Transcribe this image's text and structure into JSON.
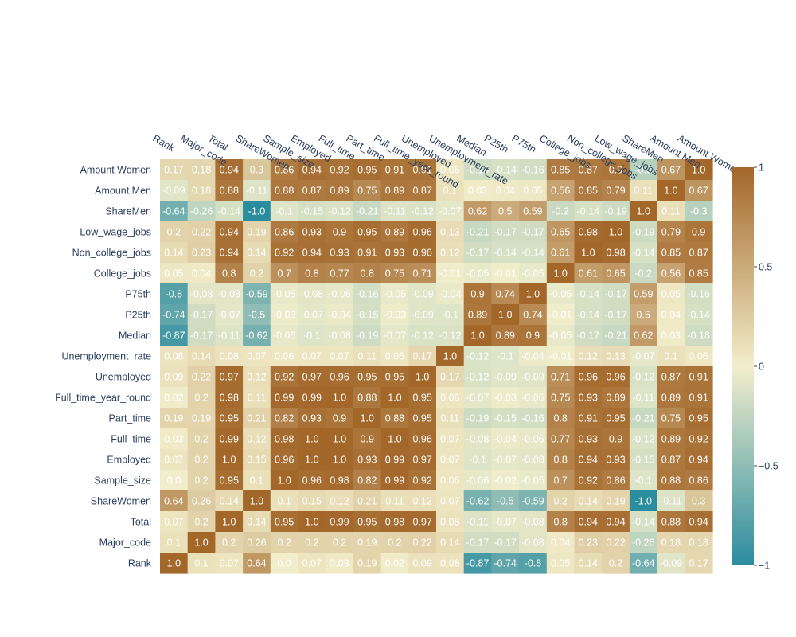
{
  "chart_data": {
    "type": "heatmap",
    "x_labels": [
      "Rank",
      "Major_code",
      "Total",
      "ShareWomen",
      "Sample_size",
      "Employed",
      "Full_time",
      "Part_time",
      "Full_time_year_round",
      "Unemployed",
      "Unemployment_rate",
      "Median",
      "P25th",
      "P75th",
      "College_jobs",
      "Non_college_jobs",
      "Low_wage_jobs",
      "ShareMen",
      "Amount Men",
      "Amount Women"
    ],
    "y_labels": [
      "Amount Women",
      "Amount Men",
      "ShareMen",
      "Low_wage_jobs",
      "Non_college_jobs",
      "College_jobs",
      "P75th",
      "P25th",
      "Median",
      "Unemployment_rate",
      "Unemployed",
      "Full_time_year_round",
      "Part_time",
      "Full_time",
      "Employed",
      "Sample_size",
      "ShareWomen",
      "Total",
      "Major_code",
      "Rank"
    ],
    "values": [
      [
        "0.17",
        "0.18",
        "0.94",
        "0.3",
        "0.86",
        "0.94",
        "0.92",
        "0.95",
        "0.91",
        "0.91",
        "0.06",
        "-0.18",
        "-0.14",
        "-0.16",
        "0.85",
        "0.87",
        "0.9",
        "-0.3",
        "0.67",
        "1.0"
      ],
      [
        "-0.09",
        "0.18",
        "0.88",
        "-0.11",
        "0.88",
        "0.87",
        "0.89",
        "0.75",
        "0.89",
        "0.87",
        "0.1",
        "0.03",
        "0.04",
        "0.05",
        "0.56",
        "0.85",
        "0.79",
        "0.11",
        "1.0",
        "0.67"
      ],
      [
        "-0.64",
        "-0.26",
        "-0.14",
        "-1.0",
        "-0.1",
        "-0.15",
        "-0.12",
        "-0.21",
        "-0.11",
        "-0.12",
        "-0.07",
        "0.62",
        "0.5",
        "0.59",
        "-0.2",
        "-0.14",
        "-0.19",
        "1.0",
        "0.11",
        "-0.3"
      ],
      [
        "0.2",
        "0.22",
        "0.94",
        "0.19",
        "0.86",
        "0.93",
        "0.9",
        "0.95",
        "0.89",
        "0.96",
        "0.13",
        "-0.21",
        "-0.17",
        "-0.17",
        "0.65",
        "0.98",
        "1.0",
        "-0.19",
        "0.79",
        "0.9"
      ],
      [
        "0.14",
        "0.23",
        "0.94",
        "0.14",
        "0.92",
        "0.94",
        "0.93",
        "0.91",
        "0.93",
        "0.96",
        "0.12",
        "-0.17",
        "-0.14",
        "-0.14",
        "0.61",
        "1.0",
        "0.98",
        "-0.14",
        "0.85",
        "0.87"
      ],
      [
        "0.05",
        "0.04",
        "0.8",
        "0.2",
        "0.7",
        "0.8",
        "0.77",
        "0.8",
        "0.75",
        "0.71",
        "-0.01",
        "-0.05",
        "-0.01",
        "-0.05",
        "1.0",
        "0.61",
        "0.65",
        "-0.2",
        "0.56",
        "0.85"
      ],
      [
        "-0.8",
        "-0.08",
        "-0.08",
        "-0.59",
        "-0.05",
        "-0.08",
        "-0.06",
        "-0.16",
        "-0.05",
        "-0.09",
        "-0.04",
        "0.9",
        "0.74",
        "1.0",
        "-0.05",
        "-0.14",
        "-0.17",
        "0.59",
        "0.05",
        "-0.16"
      ],
      [
        "-0.74",
        "-0.17",
        "-0.07",
        "-0.5",
        "-0.03",
        "-0.07",
        "-0.04",
        "-0.15",
        "-0.03",
        "-0.09",
        "-0.1",
        "0.89",
        "1.0",
        "0.74",
        "-0.01",
        "-0.14",
        "-0.17",
        "0.5",
        "0.04",
        "-0.14"
      ],
      [
        "-0.87",
        "-0.17",
        "-0.11",
        "-0.62",
        "-0.06",
        "-0.1",
        "-0.08",
        "-0.19",
        "-0.07",
        "-0.12",
        "-0.12",
        "1.0",
        "0.89",
        "0.9",
        "-0.05",
        "-0.17",
        "-0.21",
        "0.62",
        "0.03",
        "-0.18"
      ],
      [
        "0.08",
        "0.14",
        "0.08",
        "0.07",
        "0.06",
        "0.07",
        "0.07",
        "0.11",
        "0.06",
        "0.17",
        "1.0",
        "-0.12",
        "-0.1",
        "-0.04",
        "-0.01",
        "0.12",
        "0.13",
        "-0.07",
        "0.1",
        "0.06"
      ],
      [
        "0.09",
        "0.22",
        "0.97",
        "0.12",
        "0.92",
        "0.97",
        "0.96",
        "0.95",
        "0.95",
        "1.0",
        "0.17",
        "-0.12",
        "-0.09",
        "-0.09",
        "0.71",
        "0.96",
        "0.96",
        "-0.12",
        "0.87",
        "0.91"
      ],
      [
        "0.02",
        "0.2",
        "0.98",
        "0.11",
        "0.99",
        "0.99",
        "1.0",
        "0.88",
        "1.0",
        "0.95",
        "0.06",
        "-0.07",
        "-0.03",
        "-0.05",
        "0.75",
        "0.93",
        "0.89",
        "-0.11",
        "0.89",
        "0.91"
      ],
      [
        "0.19",
        "0.19",
        "0.95",
        "0.21",
        "0.82",
        "0.93",
        "0.9",
        "1.0",
        "0.88",
        "0.95",
        "0.11",
        "-0.19",
        "-0.15",
        "-0.16",
        "0.8",
        "0.91",
        "0.95",
        "-0.21",
        "0.75",
        "0.95"
      ],
      [
        "0.03",
        "0.2",
        "0.99",
        "0.12",
        "0.98",
        "1.0",
        "1.0",
        "0.9",
        "1.0",
        "0.96",
        "0.07",
        "-0.08",
        "-0.04",
        "-0.06",
        "0.77",
        "0.93",
        "0.9",
        "-0.12",
        "0.89",
        "0.92"
      ],
      [
        "0.07",
        "0.2",
        "1.0",
        "0.15",
        "0.96",
        "1.0",
        "1.0",
        "0.93",
        "0.99",
        "0.97",
        "0.07",
        "-0.1",
        "-0.07",
        "-0.08",
        "0.8",
        "0.94",
        "0.93",
        "-0.15",
        "0.87",
        "0.94"
      ],
      [
        "0.0",
        "0.2",
        "0.95",
        "0.1",
        "1.0",
        "0.96",
        "0.98",
        "0.82",
        "0.99",
        "0.92",
        "0.06",
        "-0.06",
        "-0.02",
        "-0.05",
        "0.7",
        "0.92",
        "0.86",
        "-0.1",
        "0.88",
        "0.86"
      ],
      [
        "0.64",
        "0.26",
        "0.14",
        "1.0",
        "0.1",
        "0.15",
        "0.12",
        "0.21",
        "0.11",
        "0.12",
        "0.07",
        "-0.62",
        "-0.5",
        "-0.59",
        "0.2",
        "0.14",
        "0.19",
        "-1.0",
        "-0.11",
        "0.3"
      ],
      [
        "0.07",
        "0.2",
        "1.0",
        "0.14",
        "0.95",
        "1.0",
        "0.99",
        "0.95",
        "0.98",
        "0.97",
        "0.08",
        "-0.11",
        "-0.07",
        "-0.08",
        "0.8",
        "0.94",
        "0.94",
        "-0.14",
        "0.88",
        "0.94"
      ],
      [
        "0.1",
        "1.0",
        "0.2",
        "0.26",
        "0.2",
        "0.2",
        "0.2",
        "0.19",
        "0.2",
        "0.22",
        "0.14",
        "-0.17",
        "-0.17",
        "-0.08",
        "0.04",
        "0.23",
        "0.22",
        "-0.26",
        "0.18",
        "0.18"
      ],
      [
        "1.0",
        "0.1",
        "0.07",
        "0.64",
        "0.0",
        "0.07",
        "0.03",
        "0.19",
        "0.02",
        "0.09",
        "0.08",
        "-0.87",
        "-0.74",
        "-0.8",
        "0.05",
        "0.14",
        "0.2",
        "-0.64",
        "-0.09",
        "0.17"
      ]
    ],
    "zmin": -1,
    "zmax": 1,
    "colorscale": [
      [
        0,
        "#2b8c9e"
      ],
      [
        0.5,
        "#f2eecb"
      ],
      [
        1,
        "#a3672a"
      ]
    ],
    "colorbar_ticks": [
      "1",
      "0.5",
      "0",
      "−0.5",
      "−1"
    ],
    "colorbar_tick_values": [
      1,
      0.5,
      0,
      -0.5,
      -1
    ],
    "x_axis_position": "top",
    "legend": "colorbar-right"
  }
}
